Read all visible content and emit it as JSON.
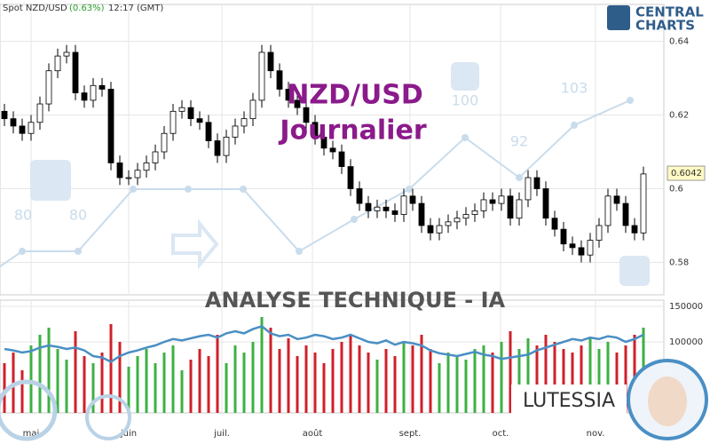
{
  "header": {
    "instrument": "Spot NZD/USD",
    "change": "(0.63%)",
    "time": "12:17 (GMT)"
  },
  "branding": {
    "logo_top": "CENTRAL",
    "logo_bottom": "CHARTS",
    "banner": "ANALYSE TECHNIQUE - IA",
    "assistant": "LUTESSIA"
  },
  "watermark": {
    "labels": [
      "80",
      "80",
      "100",
      "92",
      "103"
    ]
  },
  "chart_data": {
    "type": "candlestick",
    "title": "NZD/USD",
    "subtitle": "Journalier",
    "up_color": "#ffffff",
    "down_color": "#000000",
    "ohlc": {
      "open": [
        0.621,
        0.619,
        0.617,
        0.615,
        0.618,
        0.623,
        0.632,
        0.636,
        0.637,
        0.626,
        0.624,
        0.628,
        0.627,
        0.607,
        0.603,
        0.603,
        0.605,
        0.607,
        0.61,
        0.615,
        0.621,
        0.622,
        0.619,
        0.618,
        0.613,
        0.609,
        0.614,
        0.617,
        0.619,
        0.624,
        0.637,
        0.632,
        0.627,
        0.624,
        0.622,
        0.618,
        0.614,
        0.611,
        0.61,
        0.606,
        0.6,
        0.596,
        0.594,
        0.595,
        0.594,
        0.593,
        0.598,
        0.596,
        0.59,
        0.588,
        0.59,
        0.591,
        0.592,
        0.593,
        0.594,
        0.597,
        0.596,
        0.598,
        0.592,
        0.597,
        0.603,
        0.6,
        0.592,
        0.589,
        0.585,
        0.584,
        0.582,
        0.586,
        0.59,
        0.598,
        0.596,
        0.59,
        0.588
      ],
      "high": [
        0.623,
        0.621,
        0.619,
        0.62,
        0.625,
        0.634,
        0.638,
        0.639,
        0.639,
        0.628,
        0.63,
        0.63,
        0.629,
        0.609,
        0.605,
        0.607,
        0.609,
        0.612,
        0.617,
        0.623,
        0.624,
        0.624,
        0.621,
        0.62,
        0.615,
        0.616,
        0.619,
        0.621,
        0.626,
        0.639,
        0.639,
        0.634,
        0.629,
        0.626,
        0.624,
        0.62,
        0.616,
        0.613,
        0.612,
        0.608,
        0.602,
        0.598,
        0.597,
        0.597,
        0.596,
        0.6,
        0.6,
        0.598,
        0.592,
        0.592,
        0.593,
        0.594,
        0.595,
        0.596,
        0.599,
        0.599,
        0.6,
        0.6,
        0.599,
        0.605,
        0.605,
        0.602,
        0.594,
        0.591,
        0.587,
        0.586,
        0.588,
        0.592,
        0.6,
        0.6,
        0.598,
        0.592,
        0.606
      ],
      "low": [
        0.617,
        0.615,
        0.613,
        0.613,
        0.616,
        0.621,
        0.63,
        0.634,
        0.624,
        0.622,
        0.622,
        0.625,
        0.605,
        0.601,
        0.601,
        0.601,
        0.603,
        0.605,
        0.608,
        0.613,
        0.619,
        0.617,
        0.616,
        0.611,
        0.607,
        0.607,
        0.612,
        0.615,
        0.617,
        0.622,
        0.63,
        0.625,
        0.622,
        0.62,
        0.616,
        0.612,
        0.609,
        0.608,
        0.604,
        0.598,
        0.594,
        0.592,
        0.592,
        0.592,
        0.591,
        0.591,
        0.594,
        0.588,
        0.586,
        0.586,
        0.588,
        0.589,
        0.59,
        0.591,
        0.592,
        0.594,
        0.594,
        0.59,
        0.59,
        0.595,
        0.598,
        0.59,
        0.587,
        0.583,
        0.582,
        0.58,
        0.58,
        0.584,
        0.588,
        0.594,
        0.588,
        0.586,
        0.586
      ],
      "close": [
        0.619,
        0.617,
        0.615,
        0.618,
        0.623,
        0.632,
        0.636,
        0.637,
        0.626,
        0.624,
        0.628,
        0.627,
        0.607,
        0.603,
        0.603,
        0.605,
        0.607,
        0.61,
        0.615,
        0.621,
        0.622,
        0.619,
        0.618,
        0.613,
        0.609,
        0.614,
        0.617,
        0.619,
        0.624,
        0.637,
        0.632,
        0.627,
        0.624,
        0.622,
        0.618,
        0.614,
        0.611,
        0.61,
        0.606,
        0.6,
        0.596,
        0.594,
        0.595,
        0.594,
        0.593,
        0.598,
        0.596,
        0.59,
        0.588,
        0.59,
        0.591,
        0.592,
        0.593,
        0.594,
        0.597,
        0.596,
        0.598,
        0.592,
        0.597,
        0.603,
        0.6,
        0.592,
        0.589,
        0.585,
        0.584,
        0.582,
        0.586,
        0.59,
        0.598,
        0.596,
        0.59,
        0.588,
        0.604
      ]
    },
    "ylim": [
      0.5712,
      0.65
    ],
    "yticks": [
      0.58,
      0.6,
      0.62,
      0.64
    ],
    "xlim": [
      0,
      74.8
    ],
    "xticks": [
      {
        "value": 3.5,
        "label": "mai"
      },
      {
        "value": 14.5,
        "label": "juin"
      },
      {
        "value": 25,
        "label": "juil."
      },
      {
        "value": 35.2,
        "label": "août"
      },
      {
        "value": 46.2,
        "label": "sept."
      },
      {
        "value": 56.4,
        "label": "oct."
      },
      {
        "value": 67.1,
        "label": "nov."
      }
    ],
    "grid": true,
    "last_price": 0.6042,
    "volume": {
      "up_color": "#3cb043",
      "down_color": "#d0202a",
      "ylim": [
        0,
        158750
      ],
      "yticks": [
        100000,
        150000
      ],
      "values": [
        70000,
        85000,
        60000,
        95000,
        110000,
        120000,
        90000,
        75000,
        115000,
        80000,
        70000,
        85000,
        125000,
        100000,
        65000,
        80000,
        90000,
        70000,
        85000,
        95000,
        60000,
        75000,
        90000,
        80000,
        110000,
        70000,
        95000,
        85000,
        100000,
        135000,
        120000,
        90000,
        105000,
        80000,
        95000,
        85000,
        70000,
        90000,
        100000,
        110000,
        95000,
        85000,
        75000,
        90000,
        80000,
        100000,
        95000,
        110000,
        90000,
        70000,
        85000,
        80000,
        75000,
        90000,
        95000,
        85000,
        100000,
        115000,
        90000,
        105000,
        95000,
        110000,
        100000,
        90000,
        85000,
        95000,
        105000,
        90000,
        100000,
        85000,
        95000,
        110000,
        120000
      ]
    },
    "volume_ma": {
      "color": "#4a8fc4",
      "values": [
        90000,
        88000,
        85000,
        87000,
        92000,
        95000,
        93000,
        90000,
        92000,
        88000,
        80000,
        78000,
        72000,
        80000,
        85000,
        88000,
        92000,
        95000,
        100000,
        104000,
        102000,
        105000,
        108000,
        110000,
        106000,
        112000,
        115000,
        112000,
        118000,
        122000,
        112000,
        108000,
        110000,
        104000,
        106000,
        110000,
        108000,
        104000,
        106000,
        110000,
        105000,
        100000,
        98000,
        102000,
        96000,
        100000,
        98000,
        95000,
        88000,
        84000,
        82000,
        80000,
        83000,
        86000,
        82000,
        80000,
        76000,
        78000,
        80000,
        82000,
        88000,
        92000,
        96000,
        100000,
        104000,
        102000,
        106000,
        104000,
        108000,
        106000,
        100000,
        104000,
        110000
      ]
    }
  }
}
